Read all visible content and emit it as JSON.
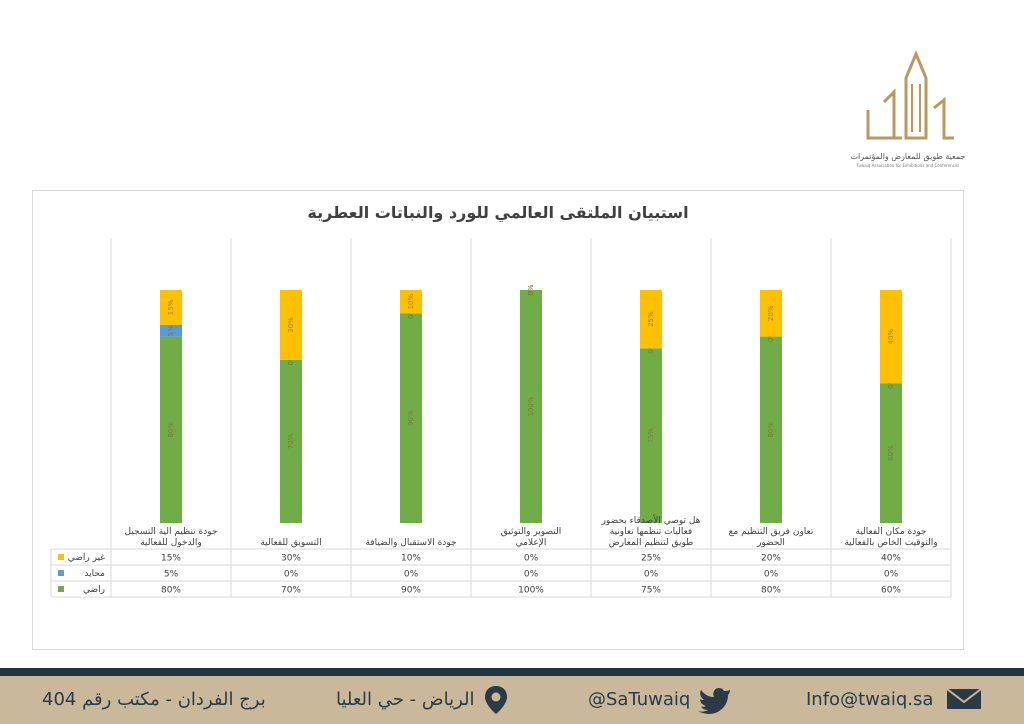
{
  "logo": {
    "name_ar": "جمعية طويق للمعارض والمؤتمرات",
    "name_en": "Tuwaiq Association for Exhibitions and Conferences"
  },
  "chart_data": {
    "type": "bar",
    "stacked": true,
    "percent_scale": true,
    "title": "استبيان الملتقى العالمي للورد والنباتات العطرية",
    "categories": [
      "جودة مكان الفعالية والتوقيت الخاص بالفعالية",
      "تعاون فريق التنظيم مع الحضور",
      "هل توصي الأصدقاء بحضور فعاليات تنظمها تعاونية طويق لتنظيم المعارض",
      "التصوير والتوثيق الإعلامي",
      "جودة الاستقبال والضيافة",
      "التسويق للفعالية",
      "جودة تنظيم الية التسجيل والدخول للفعالية"
    ],
    "series": [
      {
        "name": "راضي",
        "color": "#70ad47",
        "values": [
          60,
          80,
          75,
          100,
          90,
          70,
          80
        ],
        "labels": [
          "60%",
          "80%",
          "75%",
          "100%",
          "90%",
          "70%",
          "80%"
        ]
      },
      {
        "name": "محايد",
        "color": "#5b9bd5",
        "values": [
          0,
          0,
          0,
          0,
          0,
          0,
          5
        ],
        "labels": [
          "0%",
          "0%",
          "0%",
          "0%",
          "0%",
          "0%",
          "5%"
        ]
      },
      {
        "name": "غير راضي",
        "color": "#ffc000",
        "values": [
          40,
          20,
          25,
          0,
          10,
          30,
          15
        ],
        "labels": [
          "40%",
          "20%",
          "25%",
          "0%",
          "10%",
          "30%",
          "15%"
        ]
      }
    ],
    "ylim": [
      0,
      100
    ],
    "grid": false,
    "legend": "data-table-left"
  },
  "footer": {
    "email": "Info@twaiq.sa",
    "twitter": "@SaTuwaiq",
    "location": "الرياض - حي العليا",
    "office": "برج الفردان - مكتب رقم 404"
  }
}
